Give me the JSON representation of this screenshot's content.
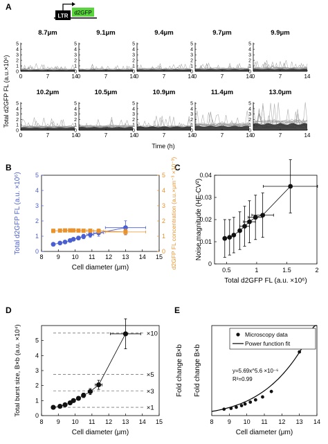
{
  "figure": {
    "panel_letters": [
      "A",
      "B",
      "C",
      "D",
      "E"
    ],
    "construct": {
      "promoter": "LTR",
      "reporter": "d2GFP"
    }
  },
  "chart_data": [
    {
      "panel": "A",
      "type": "line",
      "ylabel": "Total d2GFP FL (a.u.×10⁶)",
      "xlabel": "Time (h)",
      "xticks": [
        0,
        7,
        14
      ],
      "yticks": [
        0,
        1,
        2,
        3,
        4,
        5
      ],
      "ylim": [
        0,
        5.4
      ],
      "xlim": [
        0,
        14
      ],
      "subplots": [
        {
          "title": "8.7μm",
          "base": 0.35
        },
        {
          "title": "9.1μm",
          "base": 0.38
        },
        {
          "title": "9.4μm",
          "base": 0.42
        },
        {
          "title": "9.7μm",
          "base": 0.48
        },
        {
          "title": "9.9μm",
          "base": 0.55
        },
        {
          "title": "10.2μm",
          "base": 0.62
        },
        {
          "title": "10.5μm",
          "base": 0.72
        },
        {
          "title": "10.9μm",
          "base": 0.85
        },
        {
          "title": "11.4μm",
          "base": 1.0
        },
        {
          "title": "13.0μm",
          "base": 1.55
        }
      ]
    },
    {
      "panel": "B",
      "type": "scatter",
      "xlabel": "Cell diameter (μm)",
      "xlim": [
        8,
        15
      ],
      "xticks": [
        8,
        9,
        10,
        11,
        12,
        13,
        14,
        15
      ],
      "ylabel_left": "Total d2GFP FL (a.u. ×10⁶)",
      "ylabel_right": "d2GFP FL concentration (a.u.×μm⁻³ ×10⁻³)",
      "ylim": [
        0,
        5
      ],
      "yticks": [
        0,
        1,
        2,
        3,
        4,
        5
      ],
      "colors": {
        "left": "#4a5fd0",
        "right": "#e8932e"
      },
      "series": [
        {
          "axis": "left",
          "x": [
            8.7,
            9.1,
            9.4,
            9.7,
            9.9,
            10.2,
            10.5,
            10.9,
            11.4,
            13.0
          ],
          "y": [
            0.47,
            0.55,
            0.62,
            0.72,
            0.8,
            0.88,
            0.98,
            1.1,
            1.22,
            1.56
          ],
          "yerr": [
            0.05,
            0.06,
            0.07,
            0.08,
            0.1,
            0.12,
            0.15,
            0.18,
            0.22,
            0.45
          ],
          "xerr": [
            0,
            0,
            0,
            0,
            0,
            0,
            0,
            0.2,
            0.3,
            1.2
          ]
        },
        {
          "axis": "right",
          "x": [
            8.7,
            9.1,
            9.4,
            9.7,
            9.9,
            10.2,
            10.5,
            10.9,
            11.4,
            13.0
          ],
          "y": [
            1.35,
            1.37,
            1.38,
            1.38,
            1.38,
            1.37,
            1.36,
            1.36,
            1.34,
            1.28
          ],
          "yerr": [
            0.12,
            0.1,
            0.1,
            0.1,
            0.1,
            0.1,
            0.1,
            0.12,
            0.14,
            0.2
          ],
          "xerr": [
            0,
            0,
            0,
            0,
            0,
            0,
            0,
            0.2,
            0.3,
            1.2
          ]
        }
      ]
    },
    {
      "panel": "C",
      "type": "scatter",
      "xlabel": "Total d2GFP FL (a.u. ×10⁶)",
      "ylabel": "Noise magnitude (HF-CV²)",
      "xlim": [
        0.3,
        2
      ],
      "ylim": [
        0,
        0.04
      ],
      "xticks": [
        0.5,
        1,
        1.5,
        2
      ],
      "yticks": [
        0,
        0.01,
        0.02,
        0.03,
        0.04
      ],
      "x": [
        0.47,
        0.55,
        0.62,
        0.72,
        0.8,
        0.88,
        0.98,
        1.1,
        1.56
      ],
      "y": [
        0.0115,
        0.012,
        0.013,
        0.015,
        0.017,
        0.019,
        0.021,
        0.022,
        0.035
      ],
      "yerr": [
        0.0085,
        0.008,
        0.008,
        0.0085,
        0.009,
        0.0095,
        0.01,
        0.01,
        0.012
      ],
      "xerr": [
        0,
        0,
        0,
        0,
        0.08,
        0.1,
        0.12,
        0.18,
        0.45
      ]
    },
    {
      "panel": "D",
      "type": "scatter",
      "xlabel": "Cell diameter (μm)",
      "ylabel": "Total burst size, B×b (a.u. ×10⁴)",
      "ylabel_right": "Fold change B×b",
      "xlim": [
        8,
        15
      ],
      "ylim": [
        0,
        6
      ],
      "xticks": [
        8,
        9,
        10,
        11,
        12,
        13,
        14,
        15
      ],
      "yticks": [
        0,
        1,
        2,
        3,
        4,
        5
      ],
      "x": [
        8.7,
        9.1,
        9.4,
        9.7,
        9.9,
        10.2,
        10.5,
        10.9,
        11.4,
        13.0
      ],
      "y": [
        0.55,
        0.62,
        0.72,
        0.85,
        1.0,
        1.15,
        1.35,
        1.6,
        2.05,
        5.45
      ],
      "yerr": [
        0.05,
        0.05,
        0.06,
        0.08,
        0.1,
        0.12,
        0.15,
        0.2,
        0.3,
        1.0
      ],
      "xerr": [
        0,
        0,
        0,
        0,
        0,
        0,
        0,
        0,
        0.2,
        0.9
      ],
      "reference_lines": [
        {
          "y": 0.55,
          "label": "×1"
        },
        {
          "y": 1.65,
          "label": "×3"
        },
        {
          "y": 2.75,
          "label": "×5"
        },
        {
          "y": 5.5,
          "label": "×10"
        }
      ]
    },
    {
      "panel": "E",
      "type": "scatter",
      "xlabel": "Cell diameter (μm)",
      "ylabel": "Fold change B×b",
      "xlim": [
        8,
        14
      ],
      "ylim": [
        0,
        14
      ],
      "xticks": [
        8,
        9,
        10,
        11,
        12,
        13,
        14
      ],
      "legend": [
        "Microscopy data",
        "Power function fit"
      ],
      "legend_position": "top-right",
      "equation": "y=5.69x^5.6 ×10⁻⁶",
      "r2": "R²=0.99",
      "x": [
        8.7,
        9.1,
        9.4,
        9.7,
        9.9,
        10.2,
        10.5,
        10.9,
        11.4,
        13.0
      ],
      "y": [
        1.0,
        1.13,
        1.3,
        1.55,
        1.8,
        2.1,
        2.45,
        2.9,
        3.75,
        9.9
      ],
      "fit": {
        "a": 5.69e-06,
        "b": 5.6
      }
    }
  ]
}
